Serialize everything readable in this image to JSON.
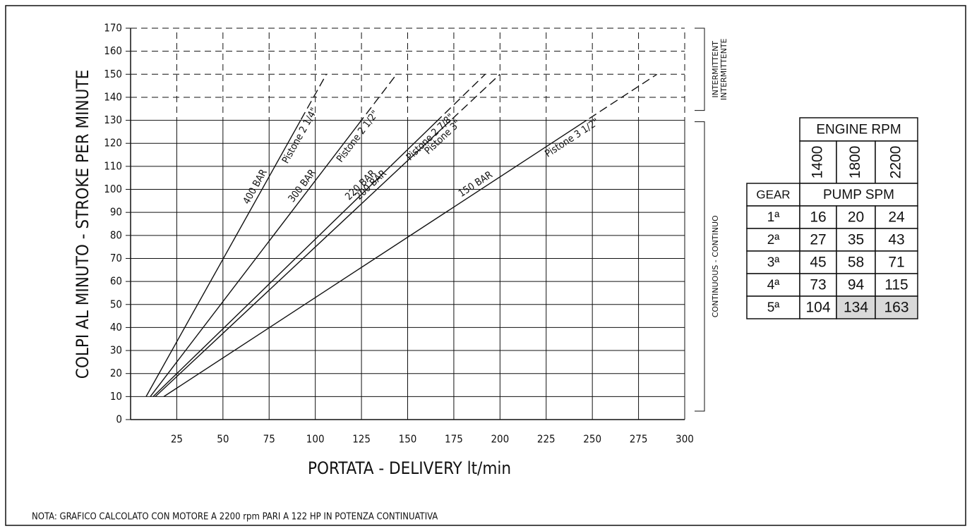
{
  "chart_data": {
    "type": "line",
    "ylabel": "COLPI AL MINUTO - STROKE PER MINUTE",
    "xlabel": "PORTATA - DELIVERY lt/min",
    "note": "NOTA: GRAFICO CALCOLATO CON MOTORE A 2200 rpm PARI A 122 HP IN POTENZA CONTINUATIVA",
    "xlim": [
      0,
      300
    ],
    "xticks": [
      25,
      50,
      75,
      100,
      125,
      150,
      175,
      200,
      225,
      250,
      275,
      300
    ],
    "ylim": [
      0,
      170
    ],
    "yticks": [
      0,
      10,
      20,
      30,
      40,
      50,
      60,
      70,
      80,
      90,
      100,
      110,
      120,
      130,
      140,
      150,
      160,
      170
    ],
    "grid": true,
    "continuous_max": 130,
    "zones": [
      {
        "label": [
          "INTERMITTENT",
          "INTERMITTENTE"
        ]
      },
      {
        "label": [
          "CONTINUOUS - CONTINUO"
        ]
      }
    ],
    "series": [
      {
        "name": "Pistone 2 1/4\"",
        "pressure": "400 BAR",
        "color": "#111",
        "x": [
          8.4,
          106
        ],
        "y": [
          10,
          150
        ]
      },
      {
        "name": "Pistone 2 1/2\"",
        "pressure": "300 BAR",
        "color": "#111",
        "x": [
          10.7,
          144
        ],
        "y": [
          10,
          150
        ]
      },
      {
        "name": "Pistone 2 7/8\"",
        "pressure": "220 BAR",
        "color": "#111",
        "x": [
          12.2,
          192
        ],
        "y": [
          10,
          150
        ]
      },
      {
        "name": "Pistone 3\"",
        "pressure": "200 BAR",
        "color": "#111",
        "x": [
          13.4,
          200
        ],
        "y": [
          10,
          150
        ]
      },
      {
        "name": "Pistone 3 1/2\"",
        "pressure": "150 BAR",
        "color": "#111",
        "x": [
          18,
          285
        ],
        "y": [
          10,
          150
        ]
      }
    ]
  },
  "table": {
    "header": "ENGINE RPM",
    "rpm": [
      "1400",
      "1800",
      "2200"
    ],
    "gear_header": "GEAR",
    "spm_header": "PUMP SPM",
    "rows": [
      {
        "gear": "1ª",
        "values": [
          16,
          20,
          24
        ],
        "shaded": [
          false,
          false,
          false
        ]
      },
      {
        "gear": "2ª",
        "values": [
          27,
          35,
          43
        ],
        "shaded": [
          false,
          false,
          false
        ]
      },
      {
        "gear": "3ª",
        "values": [
          45,
          58,
          71
        ],
        "shaded": [
          false,
          false,
          false
        ]
      },
      {
        "gear": "4ª",
        "values": [
          73,
          94,
          115
        ],
        "shaded": [
          false,
          false,
          false
        ]
      },
      {
        "gear": "5ª",
        "values": [
          104,
          134,
          163
        ],
        "shaded": [
          false,
          true,
          true
        ]
      }
    ]
  }
}
